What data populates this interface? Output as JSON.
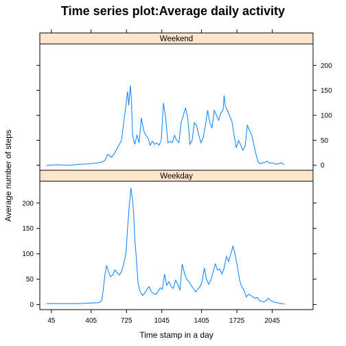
{
  "chart_data": {
    "type": "line",
    "title": "Time series plot:Average daily activity",
    "xlabel": "Time stamp in a day",
    "ylabel": "Average number of steps",
    "xlim": [
      -60,
      2415
    ],
    "ylim": [
      -10,
      243
    ],
    "x_ticks": [
      45,
      405,
      725,
      1045,
      1405,
      1725,
      2045
    ],
    "x_tick_labels": [
      "45",
      "405",
      "725",
      "1045",
      "1405",
      "1725",
      "2045"
    ],
    "y_ticks": [
      0,
      50,
      100,
      150,
      200
    ],
    "y_tick_labels": [
      "0",
      "50",
      "100",
      "150",
      "200"
    ],
    "line_color": "#0080ff",
    "strip_color": "#ffe5cc",
    "panels": [
      {
        "name": "Weekend",
        "points": [
          [
            0,
            0
          ],
          [
            100,
            1
          ],
          [
            200,
            0
          ],
          [
            300,
            2
          ],
          [
            400,
            3
          ],
          [
            500,
            6
          ],
          [
            530,
            10
          ],
          [
            555,
            22
          ],
          [
            590,
            16
          ],
          [
            620,
            25
          ],
          [
            650,
            38
          ],
          [
            680,
            50
          ],
          [
            700,
            85
          ],
          [
            720,
            120
          ],
          [
            735,
            148
          ],
          [
            745,
            120
          ],
          [
            760,
            160
          ],
          [
            770,
            130
          ],
          [
            780,
            60
          ],
          [
            800,
            42
          ],
          [
            820,
            60
          ],
          [
            840,
            45
          ],
          [
            860,
            95
          ],
          [
            880,
            70
          ],
          [
            900,
            60
          ],
          [
            920,
            55
          ],
          [
            940,
            40
          ],
          [
            960,
            48
          ],
          [
            980,
            42
          ],
          [
            1000,
            45
          ],
          [
            1020,
            40
          ],
          [
            1040,
            50
          ],
          [
            1060,
            125
          ],
          [
            1080,
            95
          ],
          [
            1100,
            45
          ],
          [
            1120,
            48
          ],
          [
            1140,
            45
          ],
          [
            1160,
            60
          ],
          [
            1180,
            50
          ],
          [
            1200,
            45
          ],
          [
            1220,
            85
          ],
          [
            1240,
            100
          ],
          [
            1260,
            115
          ],
          [
            1280,
            95
          ],
          [
            1300,
            42
          ],
          [
            1320,
            50
          ],
          [
            1340,
            85
          ],
          [
            1360,
            80
          ],
          [
            1380,
            60
          ],
          [
            1400,
            45
          ],
          [
            1420,
            55
          ],
          [
            1440,
            80
          ],
          [
            1460,
            110
          ],
          [
            1480,
            85
          ],
          [
            1500,
            75
          ],
          [
            1520,
            110
          ],
          [
            1540,
            100
          ],
          [
            1560,
            90
          ],
          [
            1580,
            105
          ],
          [
            1600,
            110
          ],
          [
            1610,
            140
          ],
          [
            1620,
            118
          ],
          [
            1640,
            110
          ],
          [
            1660,
            98
          ],
          [
            1680,
            88
          ],
          [
            1700,
            60
          ],
          [
            1720,
            35
          ],
          [
            1740,
            50
          ],
          [
            1760,
            40
          ],
          [
            1780,
            30
          ],
          [
            1800,
            38
          ],
          [
            1820,
            80
          ],
          [
            1840,
            70
          ],
          [
            1860,
            60
          ],
          [
            1880,
            40
          ],
          [
            1900,
            20
          ],
          [
            1920,
            5
          ],
          [
            1940,
            3
          ],
          [
            1960,
            5
          ],
          [
            1980,
            6
          ],
          [
            2000,
            8
          ],
          [
            2020,
            4
          ],
          [
            2040,
            5
          ],
          [
            2060,
            4
          ],
          [
            2080,
            2
          ],
          [
            2100,
            3
          ],
          [
            2130,
            5
          ],
          [
            2155,
            1
          ]
        ]
      },
      {
        "name": "Weekday",
        "points": [
          [
            0,
            2
          ],
          [
            100,
            2
          ],
          [
            200,
            2
          ],
          [
            300,
            2
          ],
          [
            400,
            3
          ],
          [
            480,
            4
          ],
          [
            500,
            8
          ],
          [
            515,
            30
          ],
          [
            530,
            60
          ],
          [
            545,
            77
          ],
          [
            560,
            66
          ],
          [
            580,
            55
          ],
          [
            600,
            58
          ],
          [
            620,
            68
          ],
          [
            640,
            63
          ],
          [
            660,
            58
          ],
          [
            680,
            65
          ],
          [
            700,
            80
          ],
          [
            720,
            100
          ],
          [
            735,
            150
          ],
          [
            750,
            195
          ],
          [
            765,
            230
          ],
          [
            780,
            205
          ],
          [
            790,
            180
          ],
          [
            800,
            130
          ],
          [
            815,
            90
          ],
          [
            830,
            42
          ],
          [
            850,
            25
          ],
          [
            870,
            18
          ],
          [
            890,
            22
          ],
          [
            910,
            30
          ],
          [
            930,
            35
          ],
          [
            950,
            25
          ],
          [
            970,
            22
          ],
          [
            990,
            20
          ],
          [
            1010,
            25
          ],
          [
            1030,
            33
          ],
          [
            1050,
            30
          ],
          [
            1070,
            60
          ],
          [
            1090,
            38
          ],
          [
            1110,
            45
          ],
          [
            1130,
            35
          ],
          [
            1150,
            32
          ],
          [
            1170,
            48
          ],
          [
            1190,
            40
          ],
          [
            1210,
            28
          ],
          [
            1230,
            80
          ],
          [
            1250,
            62
          ],
          [
            1270,
            50
          ],
          [
            1290,
            45
          ],
          [
            1310,
            38
          ],
          [
            1330,
            32
          ],
          [
            1350,
            25
          ],
          [
            1370,
            30
          ],
          [
            1390,
            35
          ],
          [
            1410,
            45
          ],
          [
            1430,
            72
          ],
          [
            1450,
            50
          ],
          [
            1470,
            40
          ],
          [
            1490,
            48
          ],
          [
            1510,
            65
          ],
          [
            1530,
            80
          ],
          [
            1550,
            68
          ],
          [
            1570,
            70
          ],
          [
            1590,
            60
          ],
          [
            1610,
            72
          ],
          [
            1630,
            95
          ],
          [
            1650,
            85
          ],
          [
            1670,
            100
          ],
          [
            1690,
            115
          ],
          [
            1710,
            98
          ],
          [
            1730,
            75
          ],
          [
            1750,
            48
          ],
          [
            1770,
            35
          ],
          [
            1790,
            28
          ],
          [
            1810,
            15
          ],
          [
            1830,
            20
          ],
          [
            1850,
            18
          ],
          [
            1870,
            15
          ],
          [
            1890,
            12
          ],
          [
            1910,
            14
          ],
          [
            1930,
            8
          ],
          [
            1950,
            6
          ],
          [
            1970,
            5
          ],
          [
            1990,
            8
          ],
          [
            2010,
            12
          ],
          [
            2030,
            8
          ],
          [
            2060,
            5
          ],
          [
            2100,
            3
          ],
          [
            2155,
            1
          ]
        ]
      }
    ]
  }
}
